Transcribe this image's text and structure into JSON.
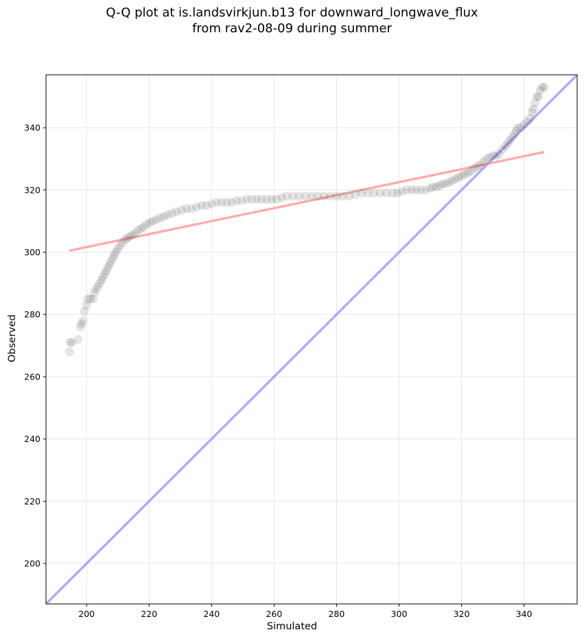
{
  "chart_data": {
    "type": "scatter",
    "title": "Q-Q plot at is.landsvirkjun.b13 for downward_longwave_flux",
    "subtitle": "from rav2-08-09 during summer",
    "xlabel": "Simulated",
    "ylabel": "Observed",
    "xlim": [
      187,
      357
    ],
    "ylim": [
      187,
      357
    ],
    "xticks": [
      200,
      220,
      240,
      260,
      280,
      300,
      320,
      340
    ],
    "yticks": [
      200,
      220,
      240,
      260,
      280,
      300,
      320,
      340
    ],
    "grid": true,
    "point_color": "#000000",
    "fit_line": {
      "color": "#ff8080",
      "x": [
        194.5,
        346.5
      ],
      "y": [
        300.5,
        332.2
      ]
    },
    "identity_line": {
      "color": "#8080ff",
      "x": [
        187,
        357
      ],
      "y": [
        187,
        357
      ]
    },
    "points": [
      [
        194.5,
        268
      ],
      [
        194.7,
        271
      ],
      [
        195.3,
        271
      ],
      [
        197.3,
        272
      ],
      [
        198.0,
        276
      ],
      [
        198.4,
        277
      ],
      [
        198.8,
        278
      ],
      [
        199.3,
        281
      ],
      [
        200.0,
        283
      ],
      [
        200.4,
        285
      ],
      [
        201.2,
        285
      ],
      [
        202.1,
        285
      ],
      [
        202.5,
        287
      ],
      [
        203.0,
        288
      ],
      [
        203.6,
        289
      ],
      [
        204.2,
        290
      ],
      [
        204.8,
        291
      ],
      [
        205.3,
        292
      ],
      [
        205.8,
        293
      ],
      [
        206.3,
        294
      ],
      [
        206.8,
        295
      ],
      [
        207.3,
        296
      ],
      [
        207.8,
        297
      ],
      [
        208.3,
        298
      ],
      [
        208.8,
        299
      ],
      [
        209.3,
        300
      ],
      [
        209.9,
        301
      ],
      [
        210.6,
        302
      ],
      [
        211.4,
        303
      ],
      [
        212.2,
        304
      ],
      [
        213.0,
        304.5
      ],
      [
        213.8,
        305
      ],
      [
        214.6,
        305.5
      ],
      [
        215.5,
        306
      ],
      [
        216.4,
        307
      ],
      [
        217.3,
        307.5
      ],
      [
        218.2,
        308
      ],
      [
        219.2,
        309
      ],
      [
        220.2,
        309.5
      ],
      [
        221.2,
        310
      ],
      [
        222.4,
        310.5
      ],
      [
        223.6,
        311
      ],
      [
        224.8,
        311.5
      ],
      [
        226.0,
        312
      ],
      [
        227.4,
        312.5
      ],
      [
        228.8,
        313
      ],
      [
        230.4,
        313.5
      ],
      [
        232.0,
        314
      ],
      [
        233.6,
        314
      ],
      [
        235.2,
        314.5
      ],
      [
        236.8,
        315
      ],
      [
        238.4,
        315
      ],
      [
        240.0,
        315.5
      ],
      [
        241.6,
        316
      ],
      [
        243.2,
        316
      ],
      [
        244.8,
        316
      ],
      [
        246.4,
        316
      ],
      [
        248.0,
        316.5
      ],
      [
        249.6,
        316.5
      ],
      [
        251.2,
        317
      ],
      [
        252.8,
        317
      ],
      [
        254.4,
        317
      ],
      [
        256.0,
        317
      ],
      [
        257.6,
        317
      ],
      [
        259.2,
        317
      ],
      [
        260.8,
        317
      ],
      [
        262.4,
        317.5
      ],
      [
        264.0,
        318
      ],
      [
        266.0,
        318
      ],
      [
        268.0,
        318
      ],
      [
        270.0,
        318
      ],
      [
        272.0,
        318
      ],
      [
        274.0,
        318
      ],
      [
        276.0,
        318
      ],
      [
        278.0,
        318
      ],
      [
        280.0,
        318
      ],
      [
        282.0,
        318
      ],
      [
        284.0,
        318
      ],
      [
        286.0,
        318.5
      ],
      [
        288.0,
        319
      ],
      [
        290.0,
        319
      ],
      [
        292.0,
        319
      ],
      [
        294.0,
        319
      ],
      [
        296.0,
        319
      ],
      [
        298.0,
        319
      ],
      [
        299.5,
        319
      ],
      [
        301.0,
        319.5
      ],
      [
        302.5,
        320
      ],
      [
        304.0,
        320
      ],
      [
        305.5,
        320
      ],
      [
        307.0,
        320
      ],
      [
        308.5,
        320
      ],
      [
        310.0,
        320.5
      ],
      [
        311.0,
        321
      ],
      [
        312.0,
        321
      ],
      [
        313.0,
        321.5
      ],
      [
        314.0,
        322
      ],
      [
        315.0,
        322
      ],
      [
        316.0,
        322.5
      ],
      [
        317.0,
        323
      ],
      [
        318.0,
        323.5
      ],
      [
        319.0,
        324
      ],
      [
        320.0,
        324.5
      ],
      [
        321.0,
        325
      ],
      [
        322.0,
        325.5
      ],
      [
        323.0,
        326
      ],
      [
        324.0,
        327
      ],
      [
        325.0,
        327.5
      ],
      [
        326.0,
        328
      ],
      [
        327.0,
        329
      ],
      [
        328.0,
        330
      ],
      [
        329.0,
        330.5
      ],
      [
        330.0,
        331
      ],
      [
        331.0,
        331
      ],
      [
        332.0,
        331.5
      ],
      [
        333.0,
        333
      ],
      [
        334.0,
        334
      ],
      [
        334.8,
        335
      ],
      [
        335.5,
        336
      ],
      [
        336.2,
        337
      ],
      [
        337.0,
        338
      ],
      [
        337.5,
        339
      ],
      [
        338.0,
        340
      ],
      [
        339.0,
        340
      ],
      [
        340.0,
        341
      ],
      [
        341.0,
        342
      ],
      [
        342.0,
        343
      ],
      [
        342.6,
        345
      ],
      [
        343.0,
        346
      ],
      [
        343.5,
        348
      ],
      [
        344.0,
        350
      ],
      [
        344.6,
        350
      ],
      [
        345.2,
        352
      ],
      [
        345.8,
        353
      ],
      [
        346.5,
        353
      ]
    ]
  }
}
